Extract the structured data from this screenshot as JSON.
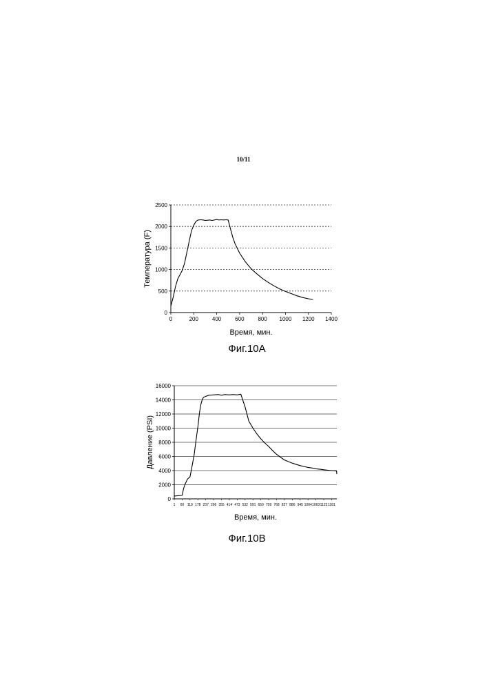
{
  "page": {
    "number": "10/11"
  },
  "figures": [
    {
      "caption": "Фиг.10А"
    },
    {
      "caption": "Фиг.10B"
    }
  ],
  "chart_data": [
    {
      "type": "line",
      "xlabel": "Время, мин.",
      "ylabel": "Температура (F)",
      "xlim": [
        0,
        1400
      ],
      "ylim": [
        0,
        2500
      ],
      "xticks": [
        0,
        200,
        400,
        600,
        800,
        1000,
        1200,
        1400
      ],
      "yticks": [
        0,
        500,
        1000,
        1500,
        2000,
        2500
      ],
      "grid": "horizontal dashed",
      "series": [
        {
          "x": [
            0,
            20,
            40,
            60,
            80,
            100,
            120,
            140,
            160,
            180,
            200,
            220,
            240,
            260,
            280,
            300,
            320,
            340,
            360,
            380,
            400,
            420,
            440,
            460,
            480,
            500,
            520,
            540,
            560,
            600,
            650,
            700,
            750,
            800,
            850,
            900,
            950,
            1000,
            1050,
            1100,
            1150,
            1200,
            1240
          ],
          "y": [
            150,
            350,
            600,
            780,
            880,
            980,
            1150,
            1400,
            1650,
            1900,
            2030,
            2120,
            2150,
            2155,
            2150,
            2140,
            2145,
            2150,
            2140,
            2150,
            2160,
            2150,
            2155,
            2150,
            2155,
            2150,
            1950,
            1750,
            1600,
            1380,
            1180,
            1020,
            900,
            790,
            700,
            620,
            550,
            490,
            440,
            390,
            350,
            320,
            305
          ]
        }
      ]
    },
    {
      "type": "line",
      "xlabel": "Время, мин.",
      "ylabel": "Давление (PSI)",
      "xlim": [
        1,
        1220
      ],
      "ylim": [
        0,
        16000
      ],
      "xticks": [
        "1",
        "60",
        "119",
        "178",
        "237",
        "296",
        "355",
        "414",
        "473",
        "532",
        "591",
        "650",
        "709",
        "768",
        "827",
        "886",
        "945",
        "1004",
        "1063",
        "1122",
        "1181"
      ],
      "yticks": [
        0,
        2000,
        4000,
        6000,
        8000,
        10000,
        12000,
        14000,
        16000
      ],
      "grid": "horizontal solid",
      "series": [
        {
          "x": [
            1,
            30,
            60,
            70,
            80,
            100,
            119,
            130,
            150,
            160,
            170,
            178,
            190,
            200,
            210,
            220,
            237,
            260,
            296,
            330,
            355,
            380,
            414,
            440,
            473,
            500,
            532,
            560,
            591,
            620,
            650,
            680,
            709,
            740,
            768,
            800,
            827,
            860,
            886,
            920,
            945,
            980,
            1004,
            1040,
            1063,
            1100,
            1122,
            1150,
            1181,
            1210,
            1218,
            1220
          ],
          "y": [
            400,
            450,
            500,
            1400,
            2000,
            2800,
            3100,
            4200,
            6200,
            7700,
            9100,
            10200,
            12200,
            13300,
            14000,
            14350,
            14500,
            14650,
            14700,
            14750,
            14650,
            14750,
            14700,
            14750,
            14700,
            14800,
            13000,
            11000,
            10000,
            9200,
            8500,
            7900,
            7400,
            6800,
            6300,
            5850,
            5500,
            5250,
            5050,
            4850,
            4700,
            4550,
            4450,
            4350,
            4250,
            4180,
            4120,
            4060,
            4000,
            3950,
            3920,
            3500
          ]
        }
      ]
    }
  ]
}
